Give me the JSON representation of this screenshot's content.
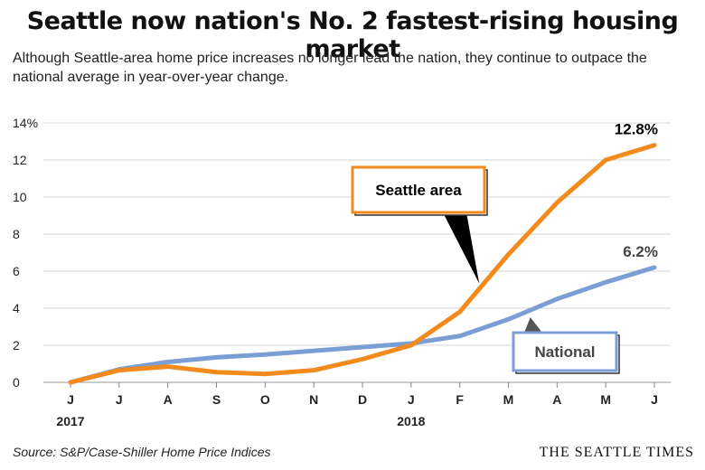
{
  "title": "Seattle now nation's No. 2 fastest-rising housing market",
  "subtitle": "Although Seattle-area home price increases no longer lead the nation, they continue to outpace the national average in year-over-year change.",
  "source": "Source: S&P/Case-Shiller Home Price Indices",
  "brand": "THE SEATTLE TIMES",
  "chart_data": {
    "type": "line",
    "categories": [
      "J",
      "J",
      "A",
      "S",
      "O",
      "N",
      "D",
      "J",
      "F",
      "M",
      "A",
      "M",
      "J"
    ],
    "year_labels": [
      {
        "index": 0,
        "label": "2017"
      },
      {
        "index": 7,
        "label": "2018"
      }
    ],
    "y_ticks": [
      0,
      2,
      4,
      6,
      8,
      10,
      12,
      14
    ],
    "y_tick_labels": [
      "0",
      "2",
      "4",
      "6",
      "8",
      "10",
      "12",
      "14%"
    ],
    "ylim": [
      0,
      14
    ],
    "grid": true,
    "series": [
      {
        "name": "National",
        "color": "#7b9fd4",
        "values": [
          0,
          0.7,
          1.1,
          1.35,
          1.5,
          1.7,
          1.9,
          2.1,
          2.5,
          3.4,
          4.5,
          5.4,
          6.2
        ],
        "end_label": "6.2%"
      },
      {
        "name": "Seattle area",
        "color": "#f28a1e",
        "values": [
          0,
          0.65,
          0.85,
          0.55,
          0.45,
          0.65,
          1.25,
          2.0,
          3.8,
          6.9,
          9.7,
          12.0,
          12.8
        ],
        "end_label": "12.8%"
      }
    ]
  }
}
